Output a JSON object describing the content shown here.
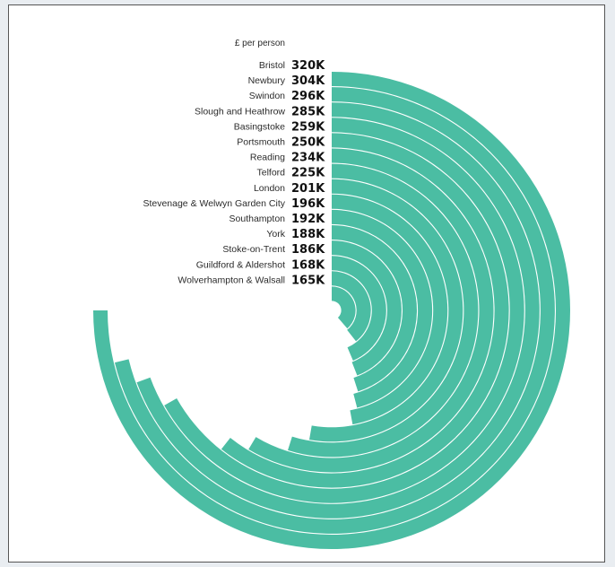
{
  "chart_data": {
    "type": "bar",
    "variant": "radial",
    "title": "",
    "unit_label": "£ per person",
    "categories": [
      "Bristol",
      "Newbury",
      "Swindon",
      "Slough and Heathrow",
      "Basingstoke",
      "Portsmouth",
      "Reading",
      "Telford",
      "London",
      "Stevenage & Welwyn Garden City",
      "Southampton",
      "York",
      "Stoke-on-Trent",
      "Guildford & Aldershot",
      "Wolverhampton & Walsall"
    ],
    "values": [
      320,
      304,
      296,
      285,
      259,
      250,
      234,
      225,
      201,
      196,
      192,
      188,
      186,
      168,
      165
    ],
    "value_labels": [
      "320K",
      "304K",
      "296K",
      "285K",
      "259K",
      "250K",
      "234K",
      "225K",
      "201K",
      "196K",
      "192K",
      "188K",
      "186K",
      "168K",
      "165K"
    ],
    "max_value": 320,
    "bar_color": "#4bbda3",
    "label_color": "#2b2b2b"
  }
}
